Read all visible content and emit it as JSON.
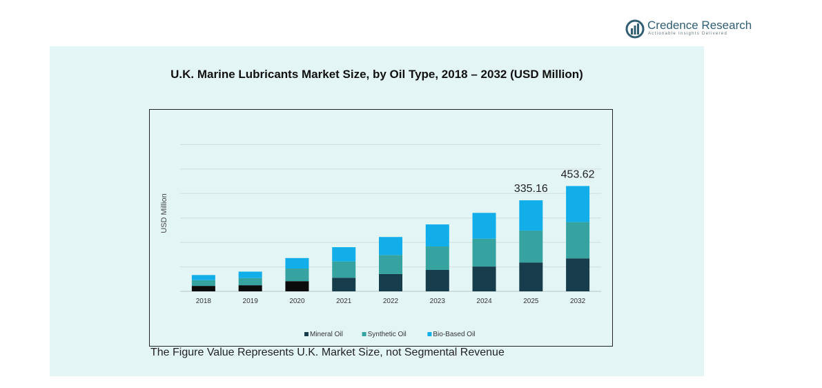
{
  "brand": {
    "name": "Credence Research",
    "tagline": "Actionable Insights Delivered"
  },
  "footnote": "The Figure Value Represents U.K. Market Size, not Segmental Revenue",
  "colors": {
    "panel": "#e3f5f5",
    "mineral_oil": "#173d4c",
    "synthetic_oil": "#36a3a0",
    "bio_based_oil": "#12aeea"
  },
  "chart_data": {
    "type": "bar",
    "stacked": true,
    "title": "U.K. Marine Lubricants Market Size, by Oil Type, 2018 – 2032 (USD Million)",
    "xlabel": "",
    "ylabel": "USD Million",
    "categories": [
      "2018",
      "2019",
      "2020",
      "2021",
      "2022",
      "2023",
      "2024",
      "2025",
      "2032"
    ],
    "series": [
      {
        "name": "Mineral Oil",
        "color": "#173d4c",
        "values": [
          16,
          18,
          30,
          40,
          51,
          63,
          73,
          85,
          97
        ]
      },
      {
        "name": "Synthetic Oil",
        "color": "#36a3a0",
        "values": [
          17,
          21,
          37,
          48,
          56,
          69,
          82,
          94,
          107
        ]
      },
      {
        "name": "Bio-Based Oil",
        "color": "#12aeea",
        "values": [
          15,
          19,
          31,
          42,
          53,
          65,
          76,
          89,
          106
        ]
      }
    ],
    "data_labels": [
      {
        "category": "2025",
        "text": "335.16"
      },
      {
        "category": "2032",
        "text": "453.62"
      }
    ],
    "ylim": [
      0,
      504
    ],
    "grid": true,
    "legend": "bottom"
  }
}
